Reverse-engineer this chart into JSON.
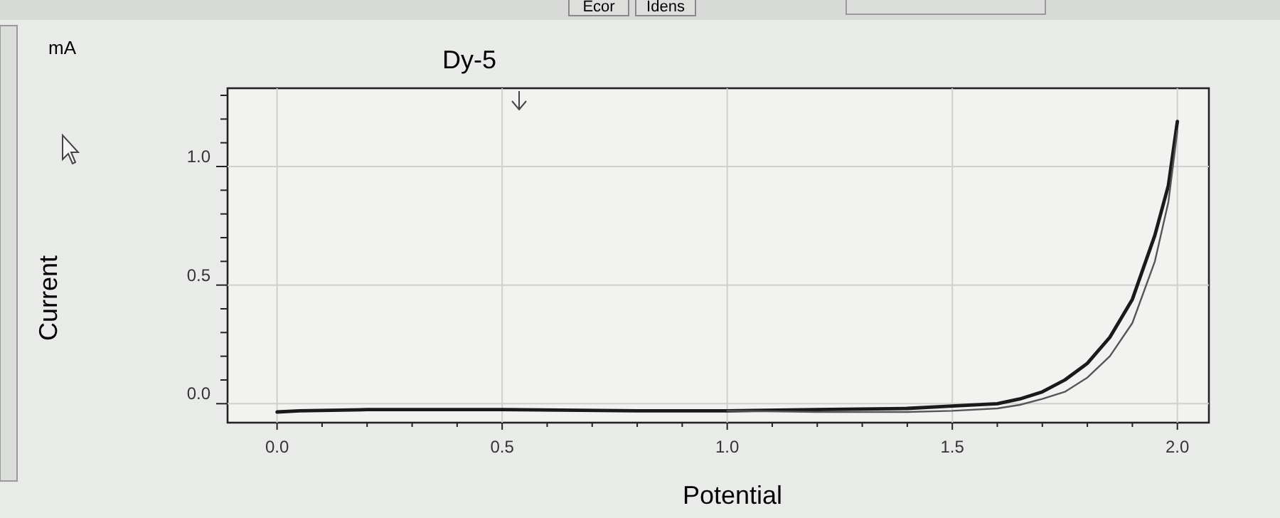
{
  "chart_data": {
    "type": "line",
    "title": "Dy-5",
    "xlabel": "Potential",
    "ylabel": "Current",
    "annotations": [
      "mA",
      "Ecor",
      "Idens"
    ],
    "xlim": [
      -0.11,
      2.07
    ],
    "ylim": [
      -0.08,
      1.33
    ],
    "xticks": [
      {
        "value": 0,
        "label": "0.0"
      },
      {
        "value": 0.1,
        "label": null
      },
      {
        "value": 0.2,
        "label": null
      },
      {
        "value": 0.3,
        "label": null
      },
      {
        "value": 0.4,
        "label": null
      },
      0.5,
      {
        "value": 0.6,
        "label": null
      },
      {
        "value": 0.7,
        "label": null
      },
      {
        "value": 0.8,
        "label": null
      },
      {
        "value": 0.9,
        "label": null
      },
      {
        "value": 1,
        "label": "1.0"
      },
      {
        "value": 1.1,
        "label": null
      },
      {
        "value": 1.2,
        "label": null
      },
      {
        "value": 1.3,
        "label": null
      },
      {
        "value": 1.4,
        "label": null
      },
      1.5,
      {
        "value": 1.6,
        "label": null
      },
      {
        "value": 1.7,
        "label": null
      },
      {
        "value": 1.8,
        "label": null
      },
      {
        "value": 1.9,
        "label": null
      },
      {
        "value": 2,
        "label": "2.0"
      }
    ],
    "yticks": [
      {
        "value": 0,
        "label": "0.0"
      },
      {
        "value": 0.1,
        "label": null
      },
      {
        "value": 0.2,
        "label": null
      },
      {
        "value": 0.3,
        "label": null
      },
      {
        "value": 0.4,
        "label": null
      },
      0.5,
      {
        "value": 0.6,
        "label": null
      },
      {
        "value": 0.7,
        "label": null
      },
      {
        "value": 0.8,
        "label": null
      },
      {
        "value": 0.9,
        "label": null
      },
      {
        "value": 1,
        "label": "1.0"
      },
      {
        "value": 1.1,
        "label": null
      },
      {
        "value": 1.2,
        "label": null
      },
      {
        "value": 1.3,
        "label": null
      }
    ],
    "grid": true,
    "marker": "none",
    "line_style": "solid",
    "series": [
      {
        "color": "#1a1a1a",
        "x": [
          0,
          0.05,
          0.2,
          0.5,
          0.8,
          1.0,
          1.2,
          1.4,
          1.5,
          1.6,
          1.65,
          1.7,
          1.75,
          1.8,
          1.85,
          1.9,
          1.95,
          1.98,
          2.0
        ],
        "values": [
          -0.035,
          -0.03,
          -0.025,
          -0.025,
          -0.03,
          -0.03,
          -0.025,
          -0.02,
          -0.01,
          0,
          0.02,
          0.05,
          0.1,
          0.17,
          0.28,
          0.44,
          0.71,
          0.92,
          1.19
        ]
      },
      {
        "color": "#555555",
        "x": [
          1.0,
          1.2,
          1.4,
          1.5,
          1.6,
          1.65,
          1.7,
          1.75,
          1.8,
          1.85,
          1.9,
          1.95,
          1.98,
          2.0
        ],
        "values": [
          -0.03,
          -0.035,
          -0.035,
          -0.03,
          -0.02,
          -0.005,
          0.02,
          0.05,
          0.11,
          0.2,
          0.34,
          0.6,
          0.85,
          1.15
        ]
      }
    ]
  }
}
